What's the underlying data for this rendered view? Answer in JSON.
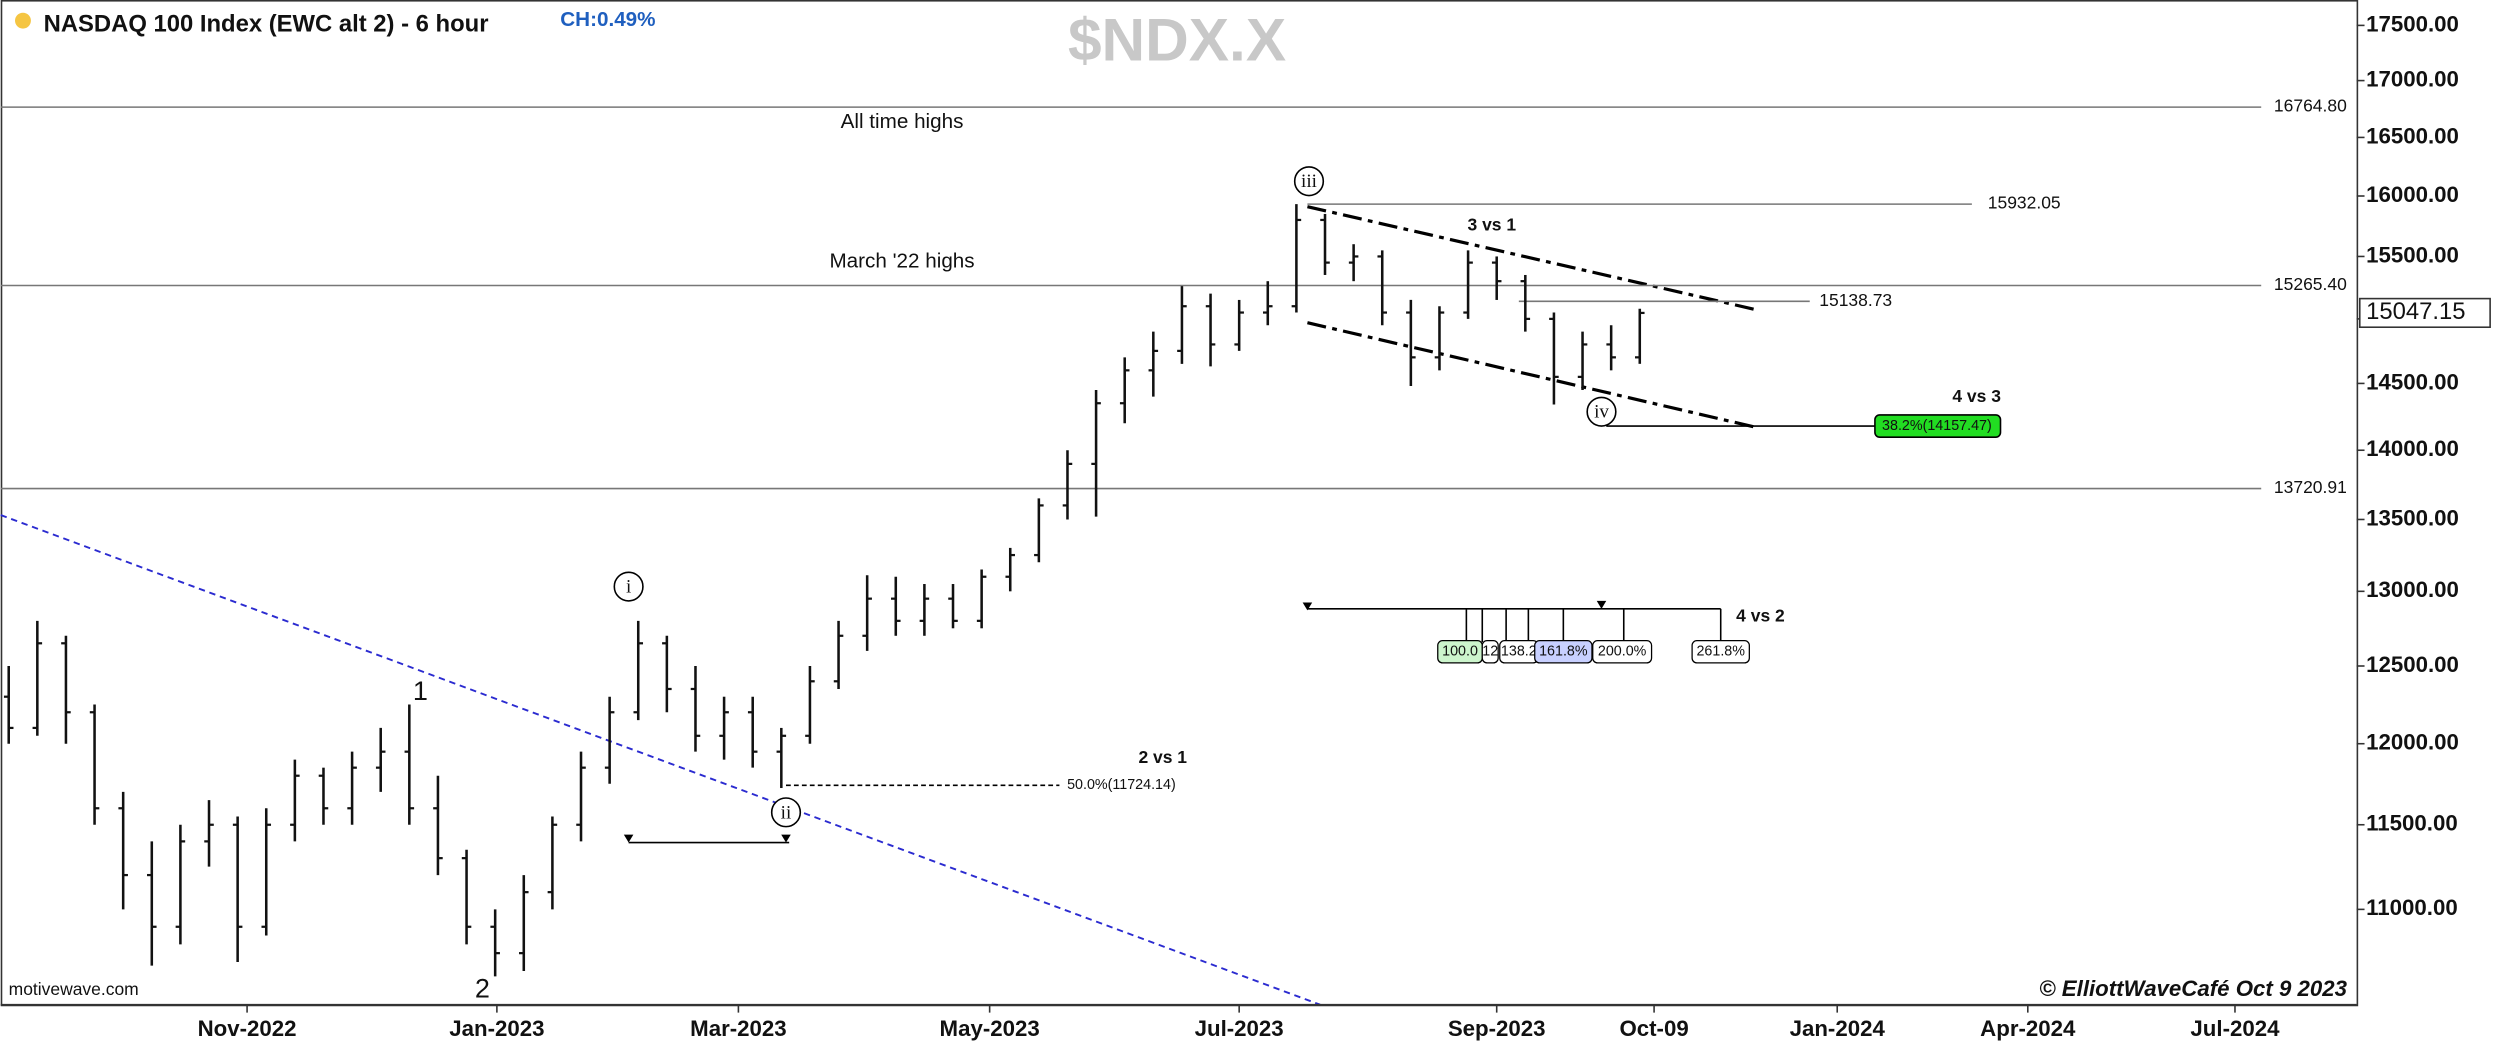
{
  "chart_data": {
    "type": "ohlc",
    "title": "NASDAQ 100 Index (EWC alt 2) - 6 hour",
    "change": "CH:0.49%",
    "symbol": "$NDX.X",
    "source": "motivewave.com",
    "copyright": "© ElliottWaveCafé Oct 9 2023",
    "log_scale": true,
    "categories": [
      null,
      null,
      null,
      null,
      null,
      null,
      null,
      null,
      null,
      null,
      null,
      null,
      null,
      null,
      null,
      null,
      null,
      null,
      null,
      null,
      null,
      null,
      null,
      null,
      null,
      null,
      null,
      null,
      null,
      null,
      null,
      null,
      null,
      null,
      null,
      null,
      null,
      null,
      null,
      null,
      null,
      null,
      null,
      null,
      null,
      null,
      null,
      null,
      null,
      null,
      null,
      null,
      null,
      null,
      null,
      null,
      null,
      null
    ],
    "open": [
      12300,
      12100,
      12650,
      12200,
      11600,
      11200,
      10900,
      11400,
      11500,
      10900,
      11500,
      11800,
      11600,
      11850,
      11950,
      11600,
      11300,
      10900,
      10750,
      11100,
      11500,
      11850,
      12200,
      12650,
      12350,
      12050,
      12200,
      11950,
      12050,
      12400,
      12700,
      12950,
      12800,
      12950,
      12800,
      13100,
      13250,
      13600,
      13900,
      14350,
      14600,
      14750,
      15100,
      14800,
      15050,
      15100,
      15800,
      15450,
      15500,
      15050,
      14700,
      15050,
      15450,
      15300,
      15000,
      14550,
      14800,
      14700
    ],
    "high": [
      12500,
      12800,
      12700,
      12250,
      11700,
      11400,
      11500,
      11650,
      11550,
      11600,
      11900,
      11850,
      11950,
      12100,
      12250,
      11800,
      11350,
      11000,
      11200,
      11550,
      11950,
      12300,
      12800,
      12700,
      12500,
      12300,
      12300,
      12100,
      12500,
      12800,
      13110,
      13100,
      13050,
      13050,
      13150,
      13300,
      13650,
      14000,
      14450,
      14700,
      14900,
      15260,
      15200,
      15150,
      15300,
      15932,
      15850,
      15600,
      15550,
      15150,
      15100,
      15550,
      15500,
      15350,
      15050,
      14900,
      14950,
      15080
    ],
    "low": [
      12000,
      12050,
      12000,
      11500,
      11000,
      10680,
      10800,
      11250,
      10700,
      10850,
      11400,
      11500,
      11500,
      11700,
      11500,
      11200,
      10800,
      10620,
      10650,
      11000,
      11400,
      11750,
      12150,
      12200,
      11950,
      11900,
      11850,
      11724,
      12000,
      12350,
      12600,
      12700,
      12700,
      12750,
      12750,
      13000,
      13200,
      13500,
      13520,
      14200,
      14400,
      14650,
      14630,
      14750,
      14950,
      15050,
      15350,
      15300,
      14950,
      14480,
      14600,
      15000,
      15150,
      14900,
      14340,
      14450,
      14600,
      14650
    ],
    "close": [
      12100,
      12650,
      12200,
      11600,
      11200,
      10900,
      11400,
      11500,
      10900,
      11500,
      11800,
      11600,
      11850,
      11950,
      11600,
      11300,
      10900,
      10750,
      11100,
      11500,
      11850,
      12200,
      12650,
      12350,
      12050,
      12200,
      11950,
      12050,
      12400,
      12700,
      12950,
      12800,
      12950,
      12800,
      13100,
      13250,
      13600,
      13900,
      14350,
      14600,
      14750,
      15100,
      14800,
      15050,
      15100,
      15800,
      15450,
      15500,
      15050,
      14700,
      15050,
      15450,
      15300,
      15000,
      14550,
      14800,
      14700,
      15047
    ],
    "color": "#111111",
    "xlim": [
      -0.28,
      82.05
    ],
    "xticks": [
      {
        "value": 8.33,
        "label": "Nov-2022"
      },
      {
        "value": 17.06,
        "label": "Jan-2023"
      },
      {
        "value": 25.5,
        "label": "Mar-2023"
      },
      {
        "value": 34.28,
        "label": "May-2023"
      },
      {
        "value": 43,
        "label": "Jul-2023"
      },
      {
        "value": 52,
        "label": "Sep-2023"
      },
      {
        "value": 57.5,
        "label": "Oct-09"
      },
      {
        "value": 63.9,
        "label": "Jan-2024"
      },
      {
        "value": 70.56,
        "label": "Apr-2024"
      },
      {
        "value": 77.8,
        "label": "Jul-2024"
      }
    ],
    "ylim": [
      10463,
      17735
    ],
    "yticks": [
      {
        "value": 11000,
        "label": "11000.00"
      },
      {
        "value": 11500,
        "label": "11500.00"
      },
      {
        "value": 12000,
        "label": "12000.00"
      },
      {
        "value": 12500,
        "label": "12500.00"
      },
      {
        "value": 13000,
        "label": "13000.00"
      },
      {
        "value": 13500,
        "label": "13500.00"
      },
      {
        "value": 14000,
        "label": "14000.00"
      },
      {
        "value": 14500,
        "label": "14500.00"
      },
      {
        "value": 15000,
        "label": "15000.00"
      },
      {
        "value": 15500,
        "label": "15500.00"
      },
      {
        "value": 16000,
        "label": "16000.00"
      },
      {
        "value": 16500,
        "label": "16500.00"
      },
      {
        "value": 17000,
        "label": "17000.00"
      },
      {
        "value": 17500,
        "label": "17500.00"
      }
    ],
    "last_price": {
      "value": 15047.15,
      "label": "15047.15"
    },
    "levels": [
      {
        "value": 16764.8,
        "label": "16764.80"
      },
      {
        "value": 15265.4,
        "label": "15265.40"
      },
      {
        "value": 13720.91,
        "label": "13720.91"
      },
      {
        "value": 15932.05,
        "label": "15932.05"
      },
      {
        "value": 15138.73,
        "label": "15138.73"
      }
    ],
    "annotations": [
      "All time highs",
      "March '22 highs",
      "3 vs 1",
      "4 vs 3",
      "2 vs 1",
      "4 vs 2"
    ],
    "wave_labels": [
      "iii",
      "i",
      "ii",
      "iv",
      "1",
      "2"
    ],
    "fib_labels": [
      "38.2%(14157.47)",
      "50.0%(11724.14)",
      "100.0",
      "12",
      "138.2",
      "161.8%",
      "200.0%",
      "261.8%"
    ]
  }
}
